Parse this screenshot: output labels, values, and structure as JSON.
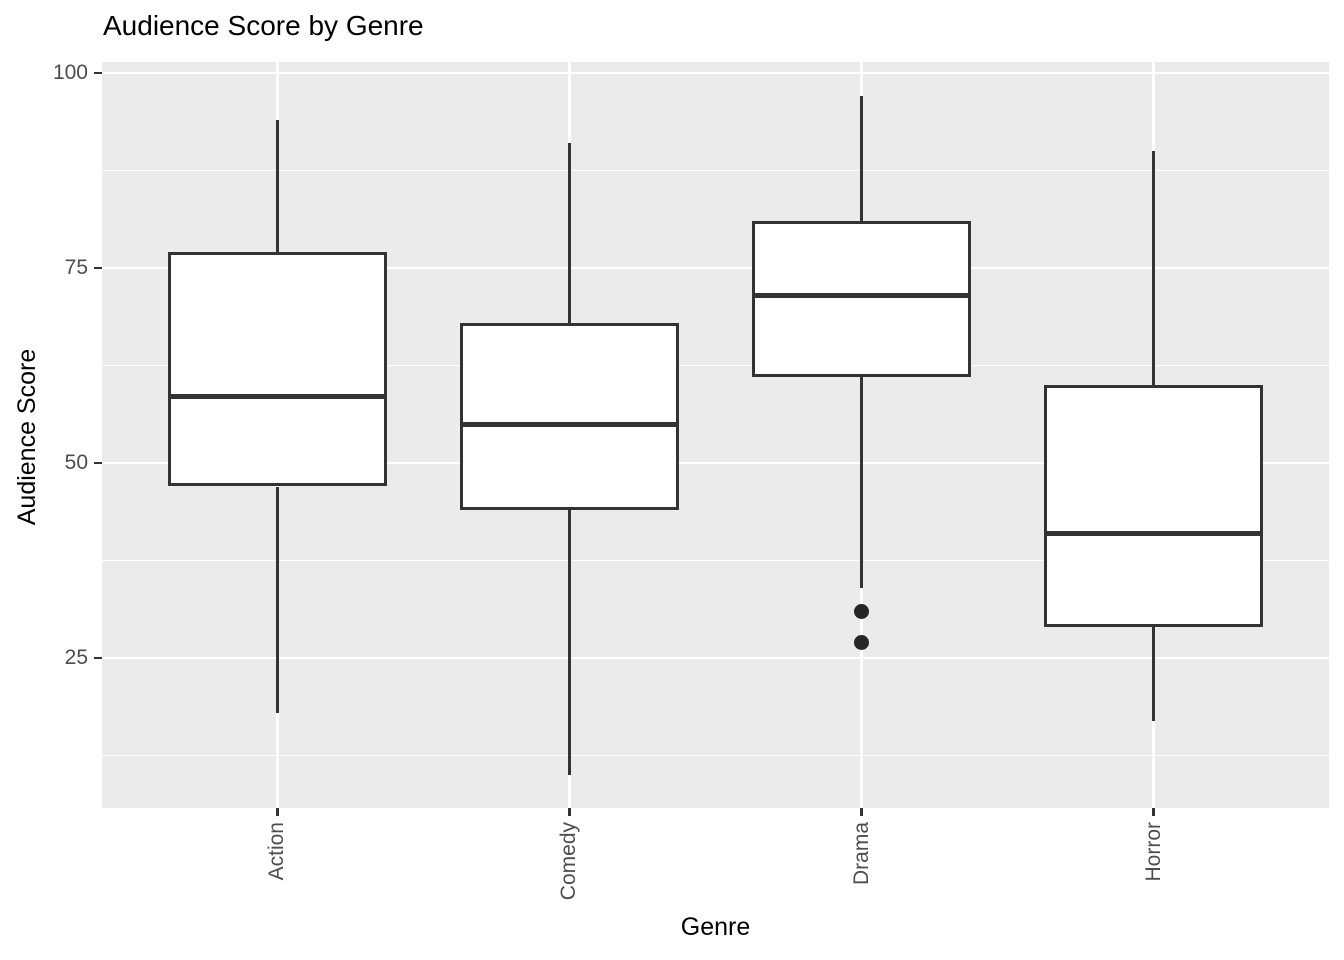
{
  "chart_data": {
    "type": "boxplot",
    "title": "Audience Score by Genre",
    "xlabel": "Genre",
    "ylabel": "Audience Score",
    "categories": [
      "Action",
      "Comedy",
      "Drama",
      "Horror"
    ],
    "y_ticks": [
      25,
      50,
      75,
      100
    ],
    "y_minor_gridlines": [
      12.5,
      37.5,
      62.5,
      87.5
    ],
    "ylim": [
      5.8,
      101.4
    ],
    "grid": true,
    "legend_position": "none",
    "series": [
      {
        "category": "Action",
        "whisker_low": 18,
        "q1": 47,
        "median": 58.5,
        "q3": 77,
        "whisker_high": 94,
        "outliers": []
      },
      {
        "category": "Comedy",
        "whisker_low": 10,
        "q1": 44,
        "median": 55,
        "q3": 68,
        "whisker_high": 91,
        "outliers": []
      },
      {
        "category": "Drama",
        "whisker_low": 34,
        "q1": 61,
        "median": 71.5,
        "q3": 81,
        "whisker_high": 97,
        "outliers": [
          31,
          27
        ]
      },
      {
        "category": "Horror",
        "whisker_low": 17,
        "q1": 29,
        "median": 41,
        "q3": 60,
        "whisker_high": 90,
        "outliers": []
      }
    ],
    "style": {
      "panel_background": "#EBEBEB",
      "gridline_color": "#FFFFFF",
      "box_border_color": "#333333",
      "box_fill_color": "#FFFFFF",
      "outlier_color": "#262626",
      "axis_text_color": "#4D4D4D",
      "title_color": "#000000"
    }
  }
}
